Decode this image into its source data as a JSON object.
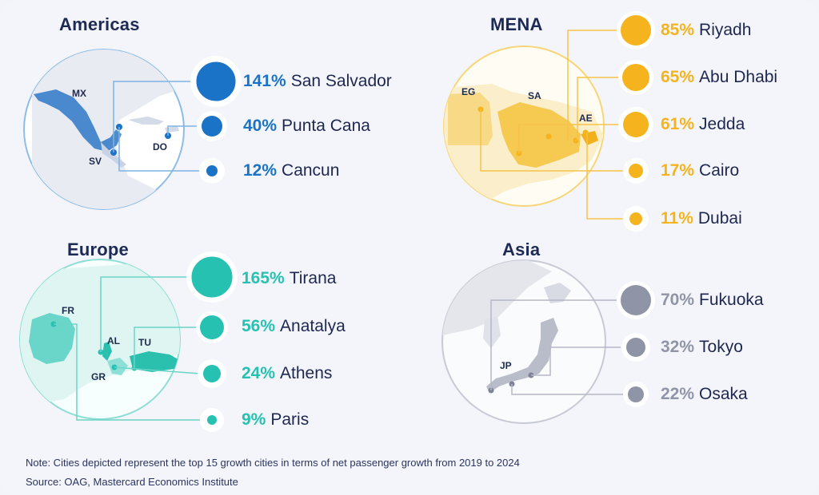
{
  "colors": {
    "americas": "#1a73c6",
    "mena": "#f5b41e",
    "europe": "#26c1b1",
    "asia": "#8f94a6",
    "navy": "#1d2a55"
  },
  "regions": {
    "americas": {
      "title": "Americas",
      "codes": [
        "MX",
        "SV",
        "DO"
      ],
      "cities": [
        {
          "pct": "141%",
          "name": "San Salvador"
        },
        {
          "pct": "40%",
          "name": "Punta Cana"
        },
        {
          "pct": "12%",
          "name": "Cancun"
        }
      ]
    },
    "mena": {
      "title": "MENA",
      "codes": [
        "EG",
        "SA",
        "AE"
      ],
      "cities": [
        {
          "pct": "85%",
          "name": "Riyadh"
        },
        {
          "pct": "65%",
          "name": "Abu Dhabi"
        },
        {
          "pct": "61%",
          "name": "Jedda"
        },
        {
          "pct": "17%",
          "name": "Cairo"
        },
        {
          "pct": "11%",
          "name": "Dubai"
        }
      ]
    },
    "europe": {
      "title": "Europe",
      "codes": [
        "FR",
        "AL",
        "TU",
        "GR"
      ],
      "cities": [
        {
          "pct": "165%",
          "name": "Tirana"
        },
        {
          "pct": "56%",
          "name": "Anatalya"
        },
        {
          "pct": "24%",
          "name": "Athens"
        },
        {
          "pct": "9%",
          "name": "Paris"
        }
      ]
    },
    "asia": {
      "title": "Asia",
      "codes": [
        "JP"
      ],
      "cities": [
        {
          "pct": "70%",
          "name": "Fukuoka"
        },
        {
          "pct": "32%",
          "name": "Tokyo"
        },
        {
          "pct": "22%",
          "name": "Osaka"
        }
      ]
    }
  },
  "footer": {
    "note": "Note: Cities depicted represent the top 15 growth cities in terms of net passenger growth from 2019 to 2024",
    "source": "Source: OAG, Mastercard Economics Institute"
  }
}
